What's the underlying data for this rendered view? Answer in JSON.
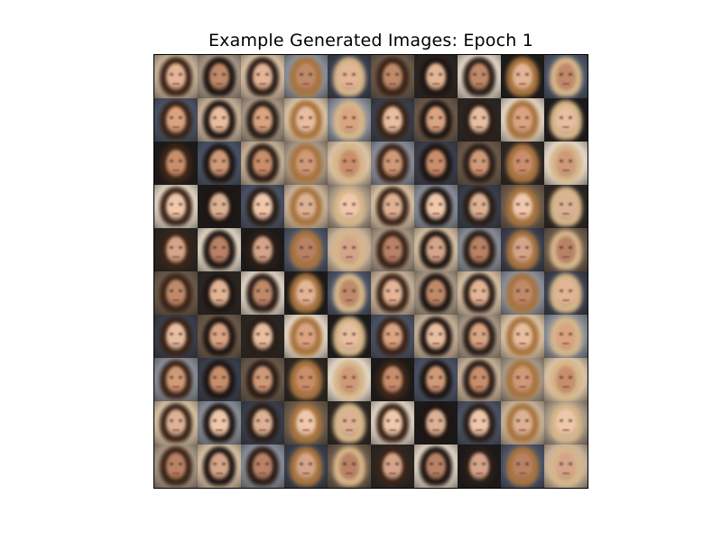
{
  "figure": {
    "title": "Example Generated Images: Epoch 1",
    "grid_rows": 10,
    "grid_cols": 10,
    "content": "generated-face-thumbnails"
  },
  "palette": {
    "backgrounds": [
      "#c9b39a",
      "#8a8f99",
      "#2b2622",
      "#4a5366",
      "#d9c2a5",
      "#6b5a4a",
      "#1c1a19",
      "#a89886",
      "#3a3f4d",
      "#e2d6c6"
    ],
    "hair": [
      "#3a2418",
      "#6e4a2c",
      "#a8743f",
      "#c89a62",
      "#1e1512",
      "#8b5a34",
      "#d6b68a",
      "#4d3322",
      "#2a1d17",
      "#b98550"
    ],
    "skin": [
      "#e3b596",
      "#d9a482",
      "#c98f6c",
      "#efc8ac",
      "#d4a58a",
      "#bf8a6a",
      "#e8bea0",
      "#cf9a78",
      "#dcb294",
      "#b98266"
    ]
  }
}
